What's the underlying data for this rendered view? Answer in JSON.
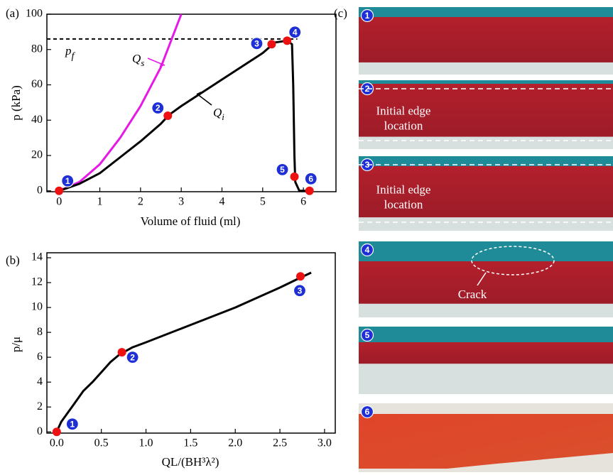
{
  "chart_data": [
    {
      "type": "line",
      "panel_label": "(a)",
      "x_label": "Volume of fluid (ml)",
      "y_label": "p (kPa)",
      "xlim": [
        -0.3,
        6.8
      ],
      "ylim": [
        -0.5,
        100
      ],
      "xticks": [
        0,
        1,
        2,
        3,
        4,
        5,
        6
      ],
      "yticks": [
        0,
        20,
        40,
        60,
        80,
        100
      ],
      "reference_line": {
        "value": 86,
        "label": "p",
        "label_sub": "f"
      },
      "series": [
        {
          "name": "Q",
          "name_sub": "s",
          "color": "#e619e6",
          "x": [
            0,
            0.5,
            1,
            1.5,
            2,
            2.5,
            2.75,
            3
          ],
          "values": [
            0,
            5,
            15,
            30,
            48,
            70,
            85,
            100
          ]
        },
        {
          "name": "Q",
          "name_sub": "i",
          "color": "#000000",
          "x": [
            0,
            0.5,
            1,
            1.5,
            2,
            2.5,
            2.7,
            3,
            4,
            5,
            5.3,
            5.6,
            5.72,
            5.75,
            5.78,
            5.8,
            5.9,
            6.15
          ],
          "values": [
            0,
            4,
            10,
            19,
            28,
            38,
            43,
            48,
            63,
            78,
            84,
            85,
            83,
            60,
            20,
            5,
            0,
            0
          ]
        }
      ],
      "points": {
        "color": "#ee1111",
        "x": [
          0,
          2.67,
          5.22,
          5.6,
          5.78,
          6.15
        ],
        "values": [
          0,
          42.5,
          83,
          85,
          8,
          0
        ],
        "labels": [
          "1",
          "2",
          "3",
          "4",
          "5",
          "6"
        ]
      }
    },
    {
      "type": "line",
      "panel_label": "(b)",
      "x_label": "QL/(BH³λ²)",
      "y_label": "p/μ",
      "xlim": [
        -0.11,
        3.12
      ],
      "ylim": [
        -0.1,
        14.4
      ],
      "xticks": [
        {
          "value": 0,
          "label": "0.0"
        },
        0.5,
        {
          "value": 1,
          "label": "1.0"
        },
        1.5,
        {
          "value": 2,
          "label": "2.0"
        },
        2.5,
        {
          "value": 3,
          "label": "3.0"
        }
      ],
      "yticks": [
        0,
        2,
        4,
        6,
        8,
        10,
        12,
        14
      ],
      "series": [
        {
          "color": "#000000",
          "x": [
            0,
            0.05,
            0.1,
            0.2,
            0.3,
            0.4,
            0.5,
            0.6,
            0.7,
            0.75,
            0.85,
            1.0,
            1.5,
            2.0,
            2.5,
            2.73,
            2.85
          ],
          "values": [
            0,
            0.8,
            1.3,
            2.3,
            3.3,
            4.0,
            4.8,
            5.6,
            6.2,
            6.4,
            6.8,
            7.2,
            8.6,
            10.0,
            11.6,
            12.4,
            12.8
          ]
        }
      ],
      "points": {
        "color": "#ee1111",
        "x": [
          0,
          0.73,
          2.73
        ],
        "values": [
          0,
          6.4,
          12.5
        ],
        "labels": [
          "1",
          "2",
          "3"
        ]
      }
    }
  ],
  "panel_c": {
    "panel_label": "(c)",
    "photos": [
      {
        "badge": "1"
      },
      {
        "badge": "2",
        "annotation": [
          "Initial edge",
          "location"
        ]
      },
      {
        "badge": "3",
        "annotation": [
          "Initial edge",
          "location"
        ]
      },
      {
        "badge": "4",
        "annotation": [
          "Crack"
        ]
      },
      {
        "badge": "5"
      },
      {
        "badge": "6"
      }
    ]
  }
}
